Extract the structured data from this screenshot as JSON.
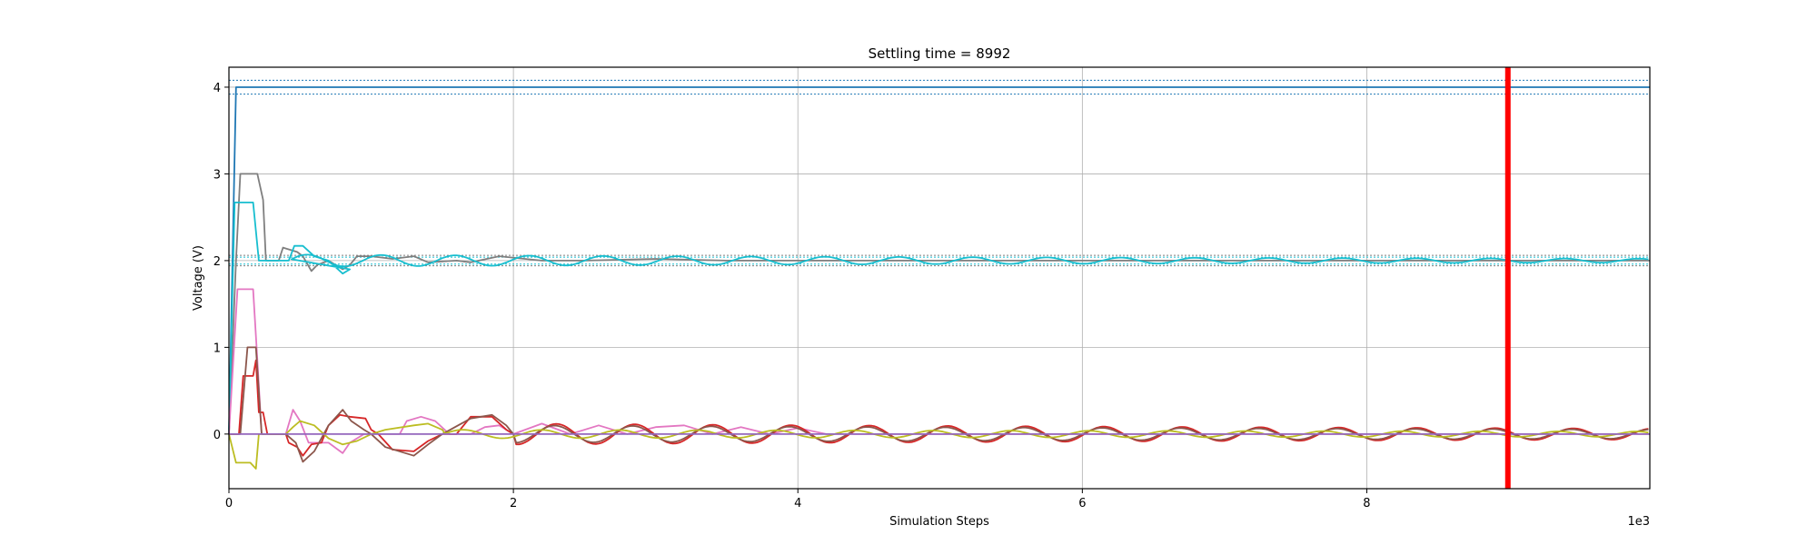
{
  "chart_data": {
    "type": "line",
    "title": "Settling time = 8992",
    "xlabel": "Simulation Steps",
    "ylabel": "Voltage (V)",
    "x_offset_label": "1e3",
    "xlim": [
      0,
      9990
    ],
    "ylim": [
      -0.63,
      4.23
    ],
    "xticks": [
      0,
      2000,
      4000,
      6000,
      8000
    ],
    "xtick_labels": [
      "0",
      "2",
      "4",
      "6",
      "8"
    ],
    "yticks": [
      0,
      1,
      2,
      3,
      4
    ],
    "ytick_labels": [
      "0",
      "1",
      "2",
      "3",
      "4"
    ],
    "grid": true,
    "settling_time": 8992,
    "settling_line_color": "#ff0000",
    "tolerance_bands": [
      {
        "lower": 3.92,
        "upper": 4.08,
        "color": "#1f77b4"
      },
      {
        "lower": 1.96,
        "upper": 2.04,
        "color": "#17becf"
      },
      {
        "lower": 1.94,
        "upper": 2.06,
        "color": "#7f7f7f"
      }
    ],
    "series": [
      {
        "color": "#1f77b4",
        "points": [
          [
            0,
            0
          ],
          [
            50,
            4
          ],
          [
            9990,
            4
          ]
        ]
      },
      {
        "color": "#7f7f7f",
        "points": [
          [
            0,
            0
          ],
          [
            50,
            2
          ],
          [
            80,
            3
          ],
          [
            200,
            3
          ],
          [
            240,
            2.7
          ],
          [
            260,
            2
          ],
          [
            300,
            2
          ],
          [
            350,
            2
          ],
          [
            380,
            2.15
          ],
          [
            480,
            2.1
          ],
          [
            520,
            2.05
          ],
          [
            580,
            1.88
          ],
          [
            620,
            1.95
          ],
          [
            700,
            2.0
          ],
          [
            800,
            1.9
          ],
          [
            850,
            1.95
          ],
          [
            900,
            2.05
          ],
          [
            1000,
            2.05
          ],
          [
            1150,
            2.02
          ],
          [
            1300,
            2.05
          ],
          [
            1400,
            1.98
          ],
          [
            1600,
            2.0
          ],
          [
            1700,
            1.98
          ],
          [
            1900,
            2.05
          ],
          [
            2200,
            2.0
          ],
          [
            2500,
            2.0
          ],
          [
            3000,
            2.02
          ],
          [
            3500,
            2.0
          ],
          [
            9990,
            2.0
          ]
        ]
      },
      {
        "color": "#17becf",
        "amp": 0.07,
        "period": 520,
        "phase": 1.2,
        "decay": 0.00012,
        "base": 2.0,
        "start": 420,
        "points": [
          [
            0,
            0
          ],
          [
            40,
            2.67
          ],
          [
            170,
            2.67
          ],
          [
            210,
            2.0
          ],
          [
            420,
            2.0
          ],
          [
            460,
            2.17
          ],
          [
            520,
            2.17
          ],
          [
            600,
            2.05
          ],
          [
            700,
            2.0
          ],
          [
            800,
            1.85
          ],
          [
            850,
            1.9
          ]
        ]
      },
      {
        "color": "#e377c2",
        "points": [
          [
            0,
            0
          ],
          [
            60,
            1.67
          ],
          [
            170,
            1.67
          ],
          [
            200,
            0.85
          ],
          [
            230,
            0
          ],
          [
            400,
            0
          ],
          [
            450,
            0.28
          ],
          [
            500,
            0.15
          ],
          [
            560,
            -0.1
          ],
          [
            700,
            -0.1
          ],
          [
            800,
            -0.22
          ],
          [
            850,
            -0.1
          ],
          [
            950,
            0
          ],
          [
            1200,
            0
          ],
          [
            1250,
            0.15
          ],
          [
            1350,
            0.2
          ],
          [
            1450,
            0.15
          ],
          [
            1550,
            0.0
          ],
          [
            1700,
            0.0
          ],
          [
            1800,
            0.08
          ],
          [
            1900,
            0.1
          ],
          [
            2000,
            0.0
          ],
          [
            2200,
            0.12
          ],
          [
            2400,
            0.0
          ],
          [
            2600,
            0.1
          ],
          [
            2800,
            0.0
          ],
          [
            3000,
            0.08
          ],
          [
            3200,
            0.1
          ],
          [
            3400,
            0.0
          ],
          [
            3600,
            0.08
          ],
          [
            3800,
            0.0
          ],
          [
            4000,
            0.07
          ],
          [
            4200,
            0.0
          ],
          [
            9990,
            0.0
          ]
        ]
      },
      {
        "color": "#d62728",
        "amp": 0.12,
        "period": 550,
        "phase": 0.4,
        "decay": 8e-05,
        "base": 0.0,
        "start": 2000,
        "points": [
          [
            0,
            0
          ],
          [
            70,
            0
          ],
          [
            100,
            0.67
          ],
          [
            170,
            0.67
          ],
          [
            190,
            0.85
          ],
          [
            210,
            0.25
          ],
          [
            240,
            0.25
          ],
          [
            270,
            0
          ],
          [
            400,
            0
          ],
          [
            420,
            -0.1
          ],
          [
            480,
            -0.15
          ],
          [
            520,
            -0.25
          ],
          [
            580,
            -0.12
          ],
          [
            650,
            -0.1
          ],
          [
            700,
            0.1
          ],
          [
            780,
            0.22
          ],
          [
            850,
            0.2
          ],
          [
            960,
            0.18
          ],
          [
            1000,
            0.05
          ],
          [
            1050,
            0.0
          ],
          [
            1150,
            -0.18
          ],
          [
            1300,
            -0.2
          ],
          [
            1400,
            -0.08
          ],
          [
            1500,
            0.0
          ],
          [
            1600,
            0.0
          ],
          [
            1700,
            0.2
          ],
          [
            1850,
            0.2
          ],
          [
            1950,
            0.05
          ],
          [
            2000,
            0.0
          ]
        ]
      },
      {
        "color": "#8c564b",
        "amp": 0.1,
        "period": 550,
        "phase": 0.55,
        "decay": 8e-05,
        "base": 0.0,
        "start": 2000,
        "points": [
          [
            0,
            0
          ],
          [
            80,
            0.0
          ],
          [
            130,
            1.0
          ],
          [
            190,
            1.0
          ],
          [
            230,
            0.0
          ],
          [
            400,
            0
          ],
          [
            470,
            -0.1
          ],
          [
            520,
            -0.32
          ],
          [
            600,
            -0.2
          ],
          [
            700,
            0.1
          ],
          [
            800,
            0.28
          ],
          [
            860,
            0.15
          ],
          [
            950,
            0.05
          ],
          [
            1000,
            0.0
          ],
          [
            1100,
            -0.15
          ],
          [
            1300,
            -0.25
          ],
          [
            1400,
            -0.12
          ],
          [
            1500,
            0.0
          ],
          [
            1700,
            0.18
          ],
          [
            1850,
            0.22
          ],
          [
            1950,
            0.1
          ],
          [
            2000,
            0.0
          ]
        ]
      },
      {
        "color": "#bcbd22",
        "amp": 0.05,
        "period": 550,
        "phase": 1.6,
        "decay": 6e-05,
        "base": 0.0,
        "start": 1500,
        "points": [
          [
            0,
            0
          ],
          [
            50,
            -0.33
          ],
          [
            150,
            -0.33
          ],
          [
            190,
            -0.4
          ],
          [
            210,
            0.0
          ],
          [
            400,
            0
          ],
          [
            450,
            0.08
          ],
          [
            500,
            0.15
          ],
          [
            600,
            0.1
          ],
          [
            700,
            -0.05
          ],
          [
            800,
            -0.12
          ],
          [
            900,
            -0.08
          ],
          [
            1000,
            0.0
          ],
          [
            1100,
            0.05
          ],
          [
            1300,
            0.1
          ],
          [
            1400,
            0.12
          ],
          [
            1500,
            0.05
          ]
        ]
      },
      {
        "color": "#9467bd",
        "points": [
          [
            0,
            0
          ],
          [
            9990,
            0
          ]
        ]
      }
    ]
  }
}
